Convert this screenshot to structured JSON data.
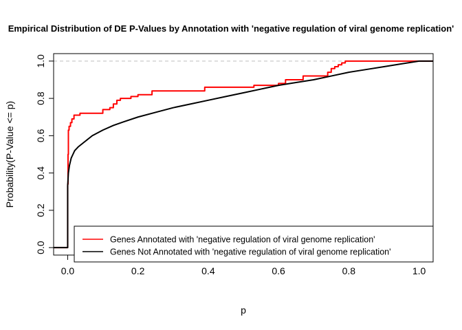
{
  "chart_data": {
    "type": "line",
    "title": "Empirical Distribution of DE P-Values by Annotation with 'negative regulation of viral genome replication'",
    "xlabel": "p",
    "ylabel": "Probability(P-Value <= p)",
    "xlim": [
      -0.04,
      1.04
    ],
    "ylim": [
      -0.04,
      1.04
    ],
    "x_ticks": [
      "0.0",
      "0.2",
      "0.4",
      "0.6",
      "0.8",
      "1.0"
    ],
    "y_ticks": [
      "0.0",
      "0.2",
      "0.4",
      "0.6",
      "0.8",
      "1.0"
    ],
    "reference_line": {
      "y": 1.0,
      "style": "dashed",
      "color": "#bebebe"
    },
    "legend_position": "bottom-right",
    "series": [
      {
        "name": "Genes Annotated with 'negative regulation of viral genome replication'",
        "color": "#ff0000",
        "step": true,
        "x": [
          -0.04,
          0.0,
          0.0,
          0.001,
          0.002,
          0.004,
          0.008,
          0.012,
          0.018,
          0.035,
          0.06,
          0.1,
          0.12,
          0.13,
          0.14,
          0.15,
          0.18,
          0.2,
          0.24,
          0.3,
          0.39,
          0.45,
          0.53,
          0.6,
          0.62,
          0.67,
          0.74,
          0.75,
          0.76,
          0.77,
          0.78,
          0.79,
          1.04
        ],
        "y": [
          0.0,
          0.0,
          0.34,
          0.5,
          0.63,
          0.65,
          0.67,
          0.69,
          0.71,
          0.72,
          0.72,
          0.74,
          0.75,
          0.77,
          0.79,
          0.8,
          0.81,
          0.82,
          0.84,
          0.84,
          0.86,
          0.86,
          0.87,
          0.88,
          0.9,
          0.92,
          0.94,
          0.96,
          0.97,
          0.98,
          0.99,
          1.0,
          1.0
        ]
      },
      {
        "name": "Genes Not Annotated with 'negative regulation of viral genome replication'",
        "color": "#000000",
        "step": false,
        "x": [
          -0.04,
          0.0,
          0.0,
          0.002,
          0.005,
          0.01,
          0.015,
          0.02,
          0.03,
          0.05,
          0.07,
          0.1,
          0.13,
          0.16,
          0.2,
          0.25,
          0.3,
          0.35,
          0.4,
          0.45,
          0.5,
          0.55,
          0.6,
          0.65,
          0.7,
          0.75,
          0.8,
          0.85,
          0.9,
          0.95,
          1.0,
          1.04
        ],
        "y": [
          0.0,
          0.0,
          0.33,
          0.4,
          0.44,
          0.48,
          0.5,
          0.52,
          0.54,
          0.57,
          0.6,
          0.63,
          0.655,
          0.675,
          0.7,
          0.725,
          0.75,
          0.77,
          0.79,
          0.81,
          0.83,
          0.85,
          0.87,
          0.885,
          0.9,
          0.92,
          0.94,
          0.955,
          0.97,
          0.985,
          1.0,
          1.0
        ]
      }
    ]
  }
}
